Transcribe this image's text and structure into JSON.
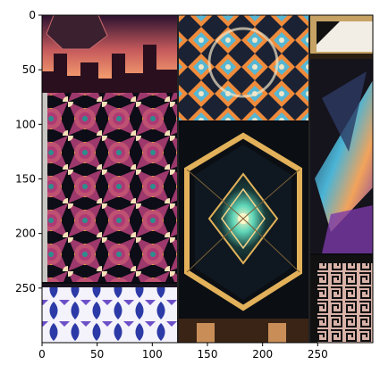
{
  "plot": {
    "x_ticks": [
      "0",
      "50",
      "100",
      "150",
      "200",
      "250"
    ],
    "y_ticks": [
      "0",
      "50",
      "100",
      "150",
      "200",
      "250"
    ]
  },
  "image": {
    "description_panels": [
      {
        "name": "sunset-city-tile"
      },
      {
        "name": "blue-orange-geometric-tile"
      },
      {
        "name": "gold-frame-corner-tile"
      },
      {
        "name": "purple-gold-kaleidoscope-tile"
      },
      {
        "name": "glowing-crystal-hexagon-tile"
      },
      {
        "name": "crystal-shard-tile"
      },
      {
        "name": "blue-white-tile-pattern"
      },
      {
        "name": "black-maze-pattern-tile"
      }
    ]
  }
}
